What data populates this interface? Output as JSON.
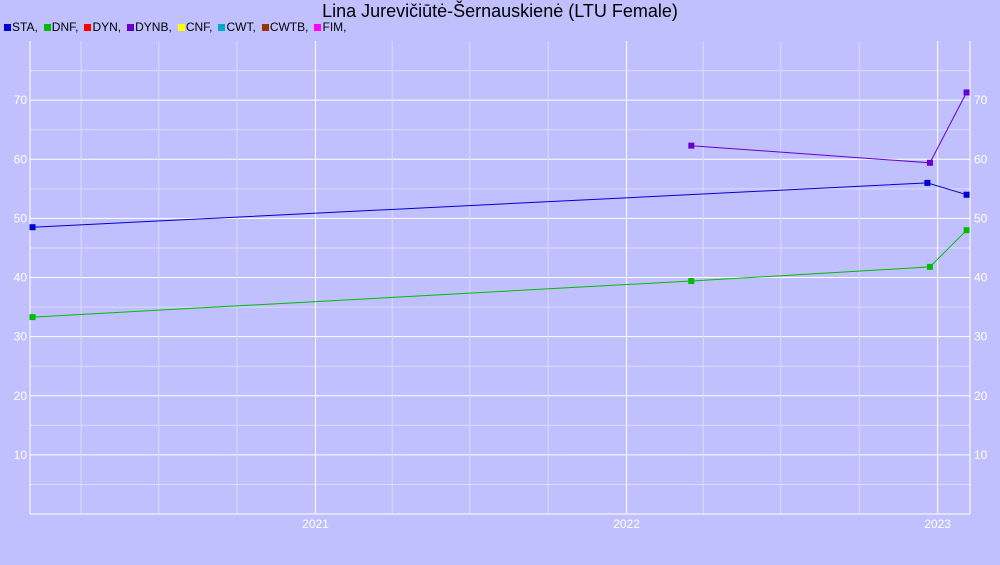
{
  "chart_data": {
    "type": "line",
    "title": "Lina Jurevičiūtė-Šernauskienė (LTU Female)",
    "xlabel": "",
    "ylabel": "",
    "ylim": [
      0,
      80
    ],
    "xlim": [
      "2020-02-01",
      "2023-02-08"
    ],
    "yticks": [
      10,
      20,
      30,
      40,
      50,
      60,
      70
    ],
    "xticks": [
      {
        "label": "2021",
        "date": "2021-01-01"
      },
      {
        "label": "2022",
        "date": "2022-01-01"
      },
      {
        "label": "2023",
        "date": "2023-01-01"
      }
    ],
    "grid": true,
    "legend_position": "top-left",
    "legend": [
      {
        "label": "STA,",
        "color": "#0000cc"
      },
      {
        "label": "DNF,",
        "color": "#00bb00"
      },
      {
        "label": "DYN,",
        "color": "#ff0000"
      },
      {
        "label": "DYNB,",
        "color": "#6600cc"
      },
      {
        "label": "CNF,",
        "color": "#ffff00"
      },
      {
        "label": "CWT,",
        "color": "#00aacc"
      },
      {
        "label": "CWTB,",
        "color": "#993300"
      },
      {
        "label": "FIM,",
        "color": "#ff00ff"
      }
    ],
    "series": [
      {
        "name": "STA",
        "color": "#0000cc",
        "points": [
          [
            "2020-02-04",
            48.5
          ],
          [
            "2022-12-20",
            56.0
          ],
          [
            "2023-02-04",
            54.0
          ]
        ]
      },
      {
        "name": "DNF",
        "color": "#00bb00",
        "points": [
          [
            "2020-02-04",
            33.3
          ],
          [
            "2022-03-18",
            39.4
          ],
          [
            "2022-12-23",
            41.8
          ],
          [
            "2023-02-04",
            48.0
          ]
        ]
      },
      {
        "name": "DYNB",
        "color": "#6600cc",
        "points": [
          [
            "2022-03-18",
            62.3
          ],
          [
            "2022-12-23",
            59.4
          ],
          [
            "2023-02-04",
            71.3
          ]
        ]
      }
    ]
  }
}
